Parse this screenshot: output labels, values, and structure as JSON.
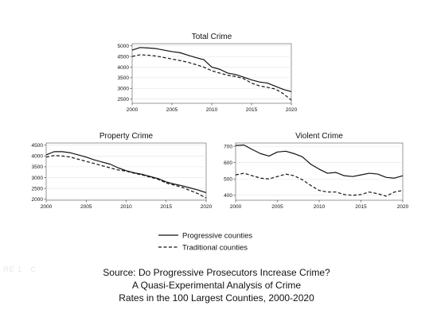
{
  "chart_data": [
    {
      "type": "line",
      "title": "Total Crime",
      "x": [
        2000,
        2001,
        2002,
        2003,
        2004,
        2005,
        2006,
        2007,
        2008,
        2009,
        2010,
        2011,
        2012,
        2013,
        2014,
        2015,
        2016,
        2017,
        2018,
        2019,
        2020
      ],
      "xlim": [
        2000,
        2020
      ],
      "ylim": [
        2300,
        5100
      ],
      "xticks": [
        2000,
        2005,
        2010,
        2015,
        2020
      ],
      "yticks": [
        2500,
        3000,
        3500,
        4000,
        4500,
        5000
      ],
      "series": [
        {
          "name": "Progressive counties",
          "style": "solid",
          "values": [
            4800,
            4920,
            4900,
            4870,
            4800,
            4730,
            4680,
            4560,
            4450,
            4350,
            4000,
            3900,
            3720,
            3650,
            3530,
            3400,
            3300,
            3250,
            3100,
            2950,
            2850
          ]
        },
        {
          "name": "Traditional counties",
          "style": "dashed",
          "values": [
            4500,
            4580,
            4560,
            4520,
            4450,
            4380,
            4310,
            4230,
            4120,
            4000,
            3830,
            3720,
            3620,
            3560,
            3460,
            3250,
            3120,
            3050,
            2970,
            2750,
            2450
          ]
        }
      ]
    },
    {
      "type": "line",
      "title": "Property Crime",
      "x": [
        2000,
        2001,
        2002,
        2003,
        2004,
        2005,
        2006,
        2007,
        2008,
        2009,
        2010,
        2011,
        2012,
        2013,
        2014,
        2015,
        2016,
        2017,
        2018,
        2019,
        2020
      ],
      "xlim": [
        2000,
        2020
      ],
      "ylim": [
        1950,
        4600
      ],
      "xticks": [
        2000,
        2005,
        2010,
        2015,
        2020
      ],
      "yticks": [
        2000,
        2500,
        3000,
        3500,
        4000,
        4500
      ],
      "series": [
        {
          "name": "Progressive counties",
          "style": "solid",
          "values": [
            4050,
            4200,
            4200,
            4150,
            4050,
            3950,
            3820,
            3720,
            3620,
            3450,
            3320,
            3220,
            3150,
            3050,
            2950,
            2800,
            2700,
            2620,
            2520,
            2420,
            2300
          ]
        },
        {
          "name": "Traditional counties",
          "style": "dashed",
          "values": [
            3950,
            4020,
            4000,
            3950,
            3850,
            3750,
            3650,
            3550,
            3450,
            3350,
            3300,
            3200,
            3120,
            3020,
            2920,
            2750,
            2650,
            2550,
            2400,
            2250,
            2050
          ]
        }
      ]
    },
    {
      "type": "line",
      "title": "Violent Crime",
      "x": [
        2000,
        2001,
        2002,
        2003,
        2004,
        2005,
        2006,
        2007,
        2008,
        2009,
        2010,
        2011,
        2012,
        2013,
        2014,
        2015,
        2016,
        2017,
        2018,
        2019,
        2020
      ],
      "xlim": [
        2000,
        2020
      ],
      "ylim": [
        370,
        720
      ],
      "xticks": [
        2000,
        2005,
        2010,
        2015,
        2020
      ],
      "yticks": [
        400,
        500,
        600,
        700
      ],
      "series": [
        {
          "name": "Progressive counties",
          "style": "solid",
          "values": [
            705,
            708,
            680,
            655,
            640,
            665,
            670,
            655,
            635,
            590,
            560,
            535,
            540,
            520,
            515,
            525,
            535,
            530,
            510,
            505,
            520
          ]
        },
        {
          "name": "Traditional counties",
          "style": "dashed",
          "values": [
            525,
            535,
            520,
            505,
            500,
            515,
            530,
            520,
            495,
            460,
            430,
            420,
            420,
            405,
            400,
            405,
            420,
            410,
            395,
            420,
            430
          ]
        }
      ]
    }
  ],
  "legend": {
    "items": [
      {
        "label": "Progressive counties",
        "style": "solid"
      },
      {
        "label": "Traditional counties",
        "style": "dashed"
      }
    ]
  },
  "source": {
    "line1": "Source: Do Progressive Prosecutors Increase Crime?",
    "line2": "A Quasi-Experimental Analysis of Crime",
    "line3": "Rates in the 100 Largest Counties, 2000-2020"
  },
  "colors": {
    "line": "#111111",
    "grid": "#e4e4e4",
    "frame": "#555555"
  }
}
